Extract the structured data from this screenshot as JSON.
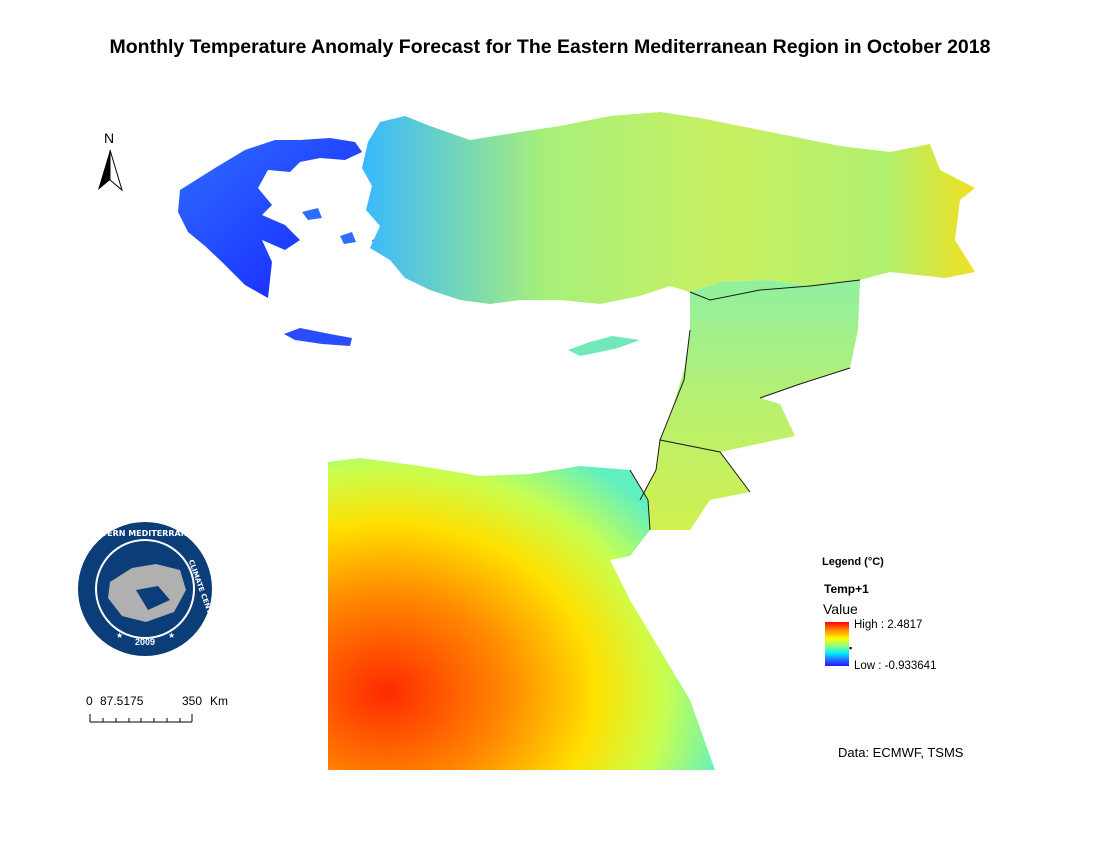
{
  "title": "Monthly Temperature Anomaly Forecast for The Eastern Mediterranean Region in October 2018",
  "north_arrow": {
    "label": "N"
  },
  "logo": {
    "ring_text_top": "EASTERN MEDITERRANEAN",
    "ring_text_right": "CLIMATE CENTRE",
    "year": "2009",
    "colors": {
      "ring": "#0b3d78",
      "land": "#b0b0b0",
      "sea": "#0b3d78"
    }
  },
  "scale_bar": {
    "labels": [
      "0",
      "87.5175",
      "350",
      "Km"
    ]
  },
  "legend": {
    "title": "Legend (°C)",
    "layer": "Temp+1",
    "field": "Value",
    "high_label": "High : 2.4817",
    "low_label": "Low : -0.933641",
    "high_value": 2.4817,
    "low_value": -0.933641,
    "ramp_colors": [
      "#ff0000",
      "#ff8800",
      "#ffff00",
      "#88ff88",
      "#00e8ff",
      "#2a5cff",
      "#1b1bff"
    ]
  },
  "credit": "Data:  ECMWF, TSMS",
  "map_colors": {
    "greece": "#2a5cff",
    "turkey": "#80e8c0",
    "levant": "#a0f070",
    "egypt": "#ffd000"
  }
}
